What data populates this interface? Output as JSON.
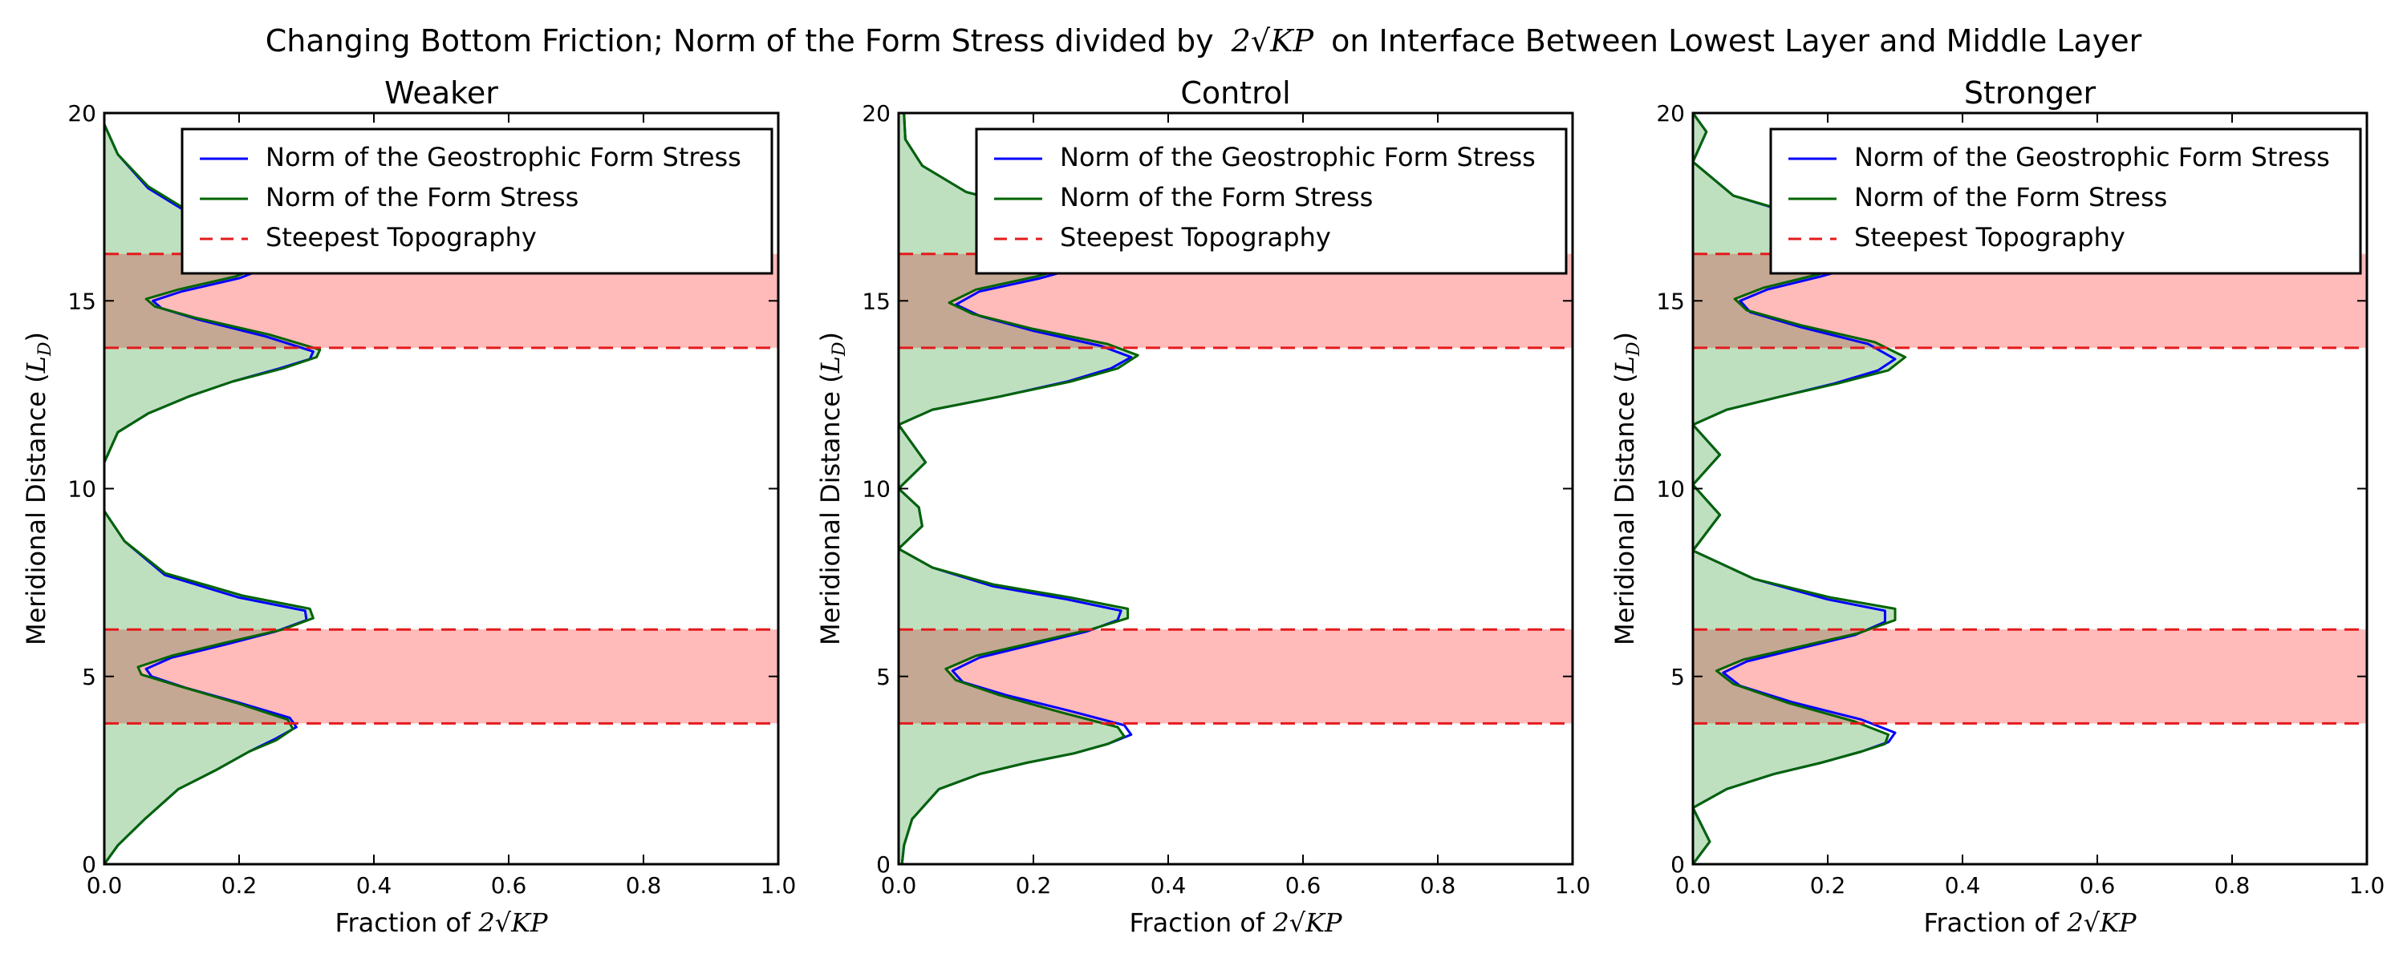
{
  "figure": {
    "suptitle_prefix": "Changing Bottom Friction; Norm of the Form Stress divided by",
    "suptitle_math": "2√KP",
    "suptitle_suffix": "on Interface Between Lowest Layer and Middle Layer"
  },
  "colors": {
    "geostrophic": "#0000ff",
    "form_stress": "#006400",
    "form_fill": "#bfe0bf",
    "topo_line": "#e41a1c",
    "topo_fill": "#ffbaba",
    "overlap_fill": "#c4a893"
  },
  "chart_data": [
    {
      "type": "line",
      "title": "Weaker",
      "xlabel_prefix": "Fraction of",
      "xlabel_math": "2√KP",
      "ylabel_prefix": "Meridional Distance (",
      "ylabel_math": "L",
      "ylabel_sub": "D",
      "ylabel_suffix": ")",
      "xlim": [
        0,
        1
      ],
      "ylim": [
        0,
        20
      ],
      "xticks": [
        "0.0",
        "0.2",
        "0.4",
        "0.6",
        "0.8",
        "1.0"
      ],
      "yticks": [
        "0",
        "5",
        "10",
        "15",
        "20"
      ],
      "legend": {
        "position": "upper right",
        "entries": [
          "Norm of the Geostrophic Form Stress",
          "Norm of the Form Stress",
          "Steepest Topography"
        ]
      },
      "topography_bands": [
        [
          3.75,
          6.25
        ],
        [
          13.75,
          16.25
        ]
      ],
      "series": [
        {
          "name": "Norm of the Geostrophic Form Stress",
          "style": "solid",
          "x": [
            0.0,
            0.02,
            0.06,
            0.11,
            0.165,
            0.215,
            0.255,
            0.285,
            0.275,
            0.2,
            0.12,
            0.07,
            0.062,
            0.1,
            0.18,
            0.255,
            0.3,
            0.298,
            0.2,
            0.09,
            0.03,
            0.0,
            0.0,
            0.02,
            0.065,
            0.125,
            0.19,
            0.26,
            0.305,
            0.31,
            0.24,
            0.14,
            0.085,
            0.072,
            0.115,
            0.2,
            0.265,
            0.28,
            0.24,
            0.175,
            0.115,
            0.065,
            0.02,
            0.0
          ],
          "y": [
            0.0,
            0.5,
            1.2,
            2.0,
            2.5,
            3.0,
            3.35,
            3.65,
            3.9,
            4.3,
            4.7,
            5.0,
            5.2,
            5.5,
            5.85,
            6.2,
            6.5,
            6.75,
            7.1,
            7.7,
            8.6,
            9.4,
            10.7,
            11.5,
            12.0,
            12.45,
            12.85,
            13.2,
            13.45,
            13.65,
            14.05,
            14.5,
            14.8,
            15.0,
            15.25,
            15.6,
            16.05,
            16.45,
            16.75,
            17.05,
            17.45,
            18.0,
            18.9,
            19.7
          ]
        },
        {
          "name": "Norm of the Form Stress",
          "style": "solid",
          "x": [
            0.0,
            0.02,
            0.06,
            0.11,
            0.165,
            0.215,
            0.255,
            0.28,
            0.272,
            0.195,
            0.11,
            0.055,
            0.05,
            0.1,
            0.18,
            0.265,
            0.31,
            0.305,
            0.205,
            0.09,
            0.03,
            0.0,
            0.0,
            0.02,
            0.065,
            0.125,
            0.19,
            0.265,
            0.315,
            0.32,
            0.245,
            0.135,
            0.075,
            0.062,
            0.11,
            0.195,
            0.26,
            0.275,
            0.24,
            0.175,
            0.115,
            0.065,
            0.02,
            0.0
          ],
          "y": [
            0.0,
            0.5,
            1.2,
            2.0,
            2.5,
            3.0,
            3.3,
            3.6,
            3.85,
            4.3,
            4.75,
            5.05,
            5.25,
            5.55,
            5.9,
            6.25,
            6.55,
            6.8,
            7.15,
            7.75,
            8.6,
            9.4,
            10.7,
            11.5,
            12.0,
            12.45,
            12.85,
            13.2,
            13.5,
            13.7,
            14.1,
            14.55,
            14.85,
            15.05,
            15.3,
            15.65,
            16.1,
            16.5,
            16.8,
            17.1,
            17.5,
            18.05,
            18.9,
            19.7
          ]
        }
      ]
    },
    {
      "type": "line",
      "title": "Control",
      "xlabel_prefix": "Fraction of",
      "xlabel_math": "2√KP",
      "ylabel_prefix": "Meridional Distance (",
      "ylabel_math": "L",
      "ylabel_sub": "D",
      "ylabel_suffix": ")",
      "xlim": [
        0,
        1
      ],
      "ylim": [
        0,
        20
      ],
      "xticks": [
        "0.0",
        "0.2",
        "0.4",
        "0.6",
        "0.8",
        "1.0"
      ],
      "yticks": [
        "0",
        "5",
        "10",
        "15",
        "20"
      ],
      "legend": {
        "position": "upper right",
        "entries": [
          "Norm of the Geostrophic Form Stress",
          "Norm of the Form Stress",
          "Steepest Topography"
        ]
      },
      "topography_bands": [
        [
          3.75,
          6.25
        ],
        [
          13.75,
          16.25
        ]
      ],
      "series": [
        {
          "name": "Norm of the Geostrophic Form Stress",
          "style": "solid",
          "x": [
            0.005,
            0.008,
            0.02,
            0.06,
            0.12,
            0.19,
            0.26,
            0.31,
            0.345,
            0.335,
            0.25,
            0.16,
            0.095,
            0.08,
            0.12,
            0.2,
            0.28,
            0.325,
            0.33,
            0.25,
            0.14,
            0.05,
            0.0,
            0.035,
            0.03,
            0.0,
            0.04,
            0.02,
            0.0,
            0.05,
            0.15,
            0.25,
            0.315,
            0.345,
            0.3,
            0.2,
            0.12,
            0.085,
            0.12,
            0.21,
            0.29,
            0.34,
            0.33,
            0.22,
            0.1,
            0.035,
            0.01,
            0.008
          ],
          "y": [
            0.0,
            0.5,
            1.2,
            2.0,
            2.4,
            2.7,
            2.95,
            3.2,
            3.45,
            3.7,
            4.1,
            4.5,
            4.85,
            5.15,
            5.5,
            5.85,
            6.2,
            6.5,
            6.75,
            7.05,
            7.4,
            7.9,
            8.4,
            9.0,
            9.5,
            10.0,
            10.7,
            11.2,
            11.7,
            12.1,
            12.45,
            12.85,
            13.2,
            13.5,
            13.8,
            14.2,
            14.6,
            14.9,
            15.25,
            15.6,
            16.0,
            16.4,
            16.8,
            17.35,
            17.9,
            18.6,
            19.3,
            20.0
          ]
        },
        {
          "name": "Norm of the Form Stress",
          "style": "solid",
          "x": [
            0.005,
            0.008,
            0.02,
            0.06,
            0.12,
            0.19,
            0.26,
            0.31,
            0.335,
            0.325,
            0.24,
            0.15,
            0.085,
            0.07,
            0.115,
            0.2,
            0.285,
            0.34,
            0.34,
            0.255,
            0.14,
            0.05,
            0.0,
            0.035,
            0.03,
            0.0,
            0.04,
            0.02,
            0.0,
            0.05,
            0.15,
            0.255,
            0.325,
            0.355,
            0.31,
            0.2,
            0.11,
            0.075,
            0.115,
            0.205,
            0.285,
            0.33,
            0.32,
            0.215,
            0.1,
            0.035,
            0.01,
            0.008
          ],
          "y": [
            0.0,
            0.5,
            1.2,
            2.0,
            2.4,
            2.7,
            2.95,
            3.2,
            3.4,
            3.65,
            4.05,
            4.5,
            4.9,
            5.2,
            5.55,
            5.9,
            6.25,
            6.55,
            6.8,
            7.1,
            7.45,
            7.9,
            8.4,
            9.0,
            9.5,
            10.0,
            10.7,
            11.2,
            11.7,
            12.1,
            12.45,
            12.85,
            13.2,
            13.55,
            13.85,
            14.25,
            14.65,
            14.95,
            15.3,
            15.65,
            16.05,
            16.4,
            16.8,
            17.35,
            17.9,
            18.6,
            19.3,
            20.0
          ]
        }
      ]
    },
    {
      "type": "line",
      "title": "Stronger",
      "xlabel_prefix": "Fraction of",
      "xlabel_math": "2√KP",
      "ylabel_prefix": "Meridional Distance (",
      "ylabel_math": "L",
      "ylabel_sub": "D",
      "ylabel_suffix": ")",
      "xlim": [
        0,
        1
      ],
      "ylim": [
        0,
        20
      ],
      "xticks": [
        "0.0",
        "0.2",
        "0.4",
        "0.6",
        "0.8",
        "1.0"
      ],
      "yticks": [
        "0",
        "5",
        "10",
        "15",
        "20"
      ],
      "legend": {
        "position": "upper right",
        "entries": [
          "Norm of the Geostrophic Form Stress",
          "Norm of the Form Stress",
          "Steepest Topography"
        ]
      },
      "topography_bands": [
        [
          3.75,
          6.25
        ],
        [
          13.75,
          16.25
        ]
      ],
      "series": [
        {
          "name": "Norm of the Geostrophic Form Stress",
          "style": "solid",
          "x": [
            0.0,
            0.025,
            0.0,
            0.05,
            0.12,
            0.19,
            0.25,
            0.29,
            0.3,
            0.25,
            0.15,
            0.07,
            0.045,
            0.08,
            0.16,
            0.24,
            0.285,
            0.285,
            0.2,
            0.09,
            0.0,
            0.04,
            0.0,
            0.04,
            0.0,
            0.05,
            0.13,
            0.21,
            0.275,
            0.3,
            0.26,
            0.16,
            0.085,
            0.07,
            0.11,
            0.19,
            0.26,
            0.3,
            0.27,
            0.18,
            0.06,
            0.0,
            0.02,
            0.0
          ],
          "y": [
            0.0,
            0.6,
            1.5,
            2.0,
            2.4,
            2.7,
            3.0,
            3.25,
            3.5,
            3.85,
            4.3,
            4.75,
            5.1,
            5.4,
            5.75,
            6.1,
            6.45,
            6.75,
            7.05,
            7.6,
            8.35,
            9.3,
            10.1,
            10.9,
            11.7,
            12.1,
            12.45,
            12.8,
            13.15,
            13.45,
            13.85,
            14.3,
            14.7,
            15.0,
            15.3,
            15.65,
            16.0,
            16.4,
            16.75,
            17.15,
            17.8,
            18.7,
            19.5,
            20.0
          ]
        },
        {
          "name": "Norm of the Form Stress",
          "style": "solid",
          "x": [
            0.0,
            0.025,
            0.0,
            0.05,
            0.12,
            0.19,
            0.25,
            0.285,
            0.29,
            0.24,
            0.14,
            0.06,
            0.035,
            0.075,
            0.16,
            0.245,
            0.3,
            0.3,
            0.205,
            0.09,
            0.0,
            0.04,
            0.0,
            0.04,
            0.0,
            0.05,
            0.13,
            0.215,
            0.29,
            0.315,
            0.27,
            0.16,
            0.08,
            0.062,
            0.105,
            0.185,
            0.255,
            0.295,
            0.265,
            0.175,
            0.06,
            0.0,
            0.02,
            0.0
          ],
          "y": [
            0.0,
            0.6,
            1.5,
            2.0,
            2.4,
            2.7,
            3.0,
            3.2,
            3.45,
            3.8,
            4.3,
            4.8,
            5.15,
            5.45,
            5.8,
            6.15,
            6.5,
            6.8,
            7.1,
            7.6,
            8.35,
            9.3,
            10.1,
            10.9,
            11.7,
            12.1,
            12.45,
            12.8,
            13.15,
            13.5,
            13.9,
            14.35,
            14.75,
            15.05,
            15.35,
            15.7,
            16.05,
            16.45,
            16.8,
            17.2,
            17.8,
            18.7,
            19.5,
            20.0
          ]
        }
      ]
    }
  ]
}
